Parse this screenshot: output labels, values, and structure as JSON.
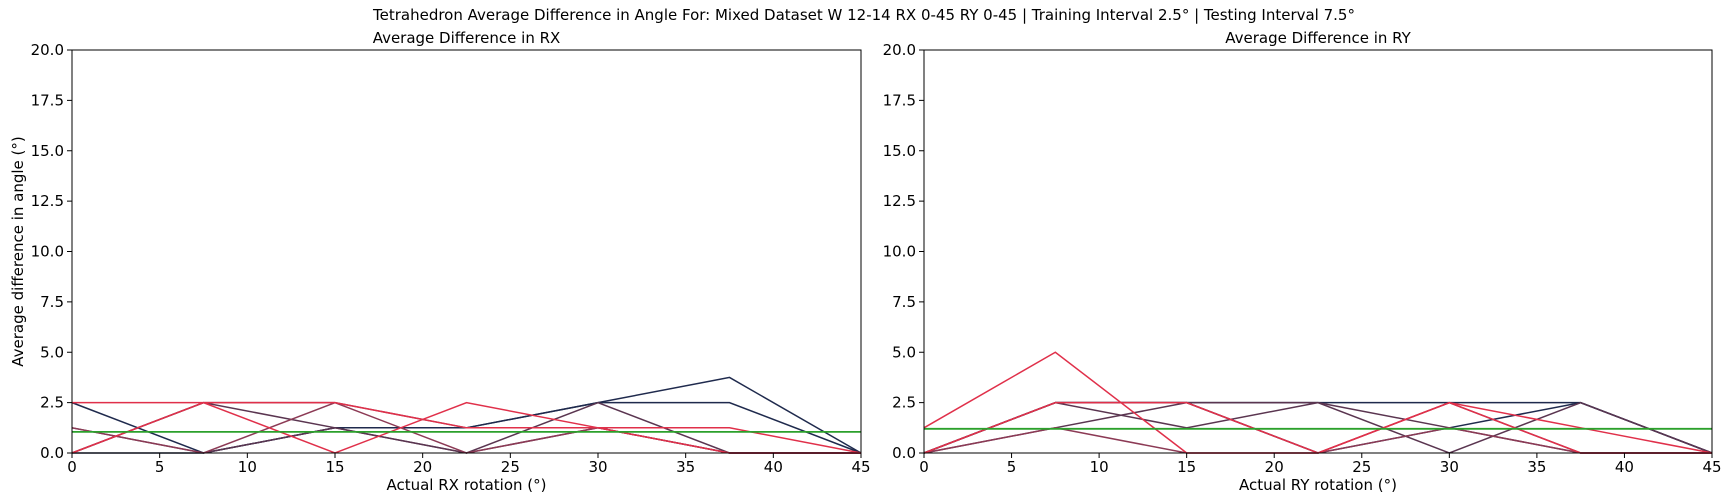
{
  "figure": {
    "title": "Tetrahedron Average Difference in Angle For: Mixed Dataset W 12-14 RX 0-45 RY 0-45 | Training Interval 2.5° | Testing Interval 7.5°"
  },
  "colors": {
    "navy": "#1f2a4d",
    "plum": "#5a3550",
    "rose": "#8c3a55",
    "crimson": "#e0304a",
    "mean_line": "#2ca02c",
    "axis": "#000000"
  },
  "chart_data": [
    {
      "type": "line",
      "title": "Average Difference in RX",
      "xlabel": "Actual RX rotation (°)",
      "ylabel": "Average difference in angle (°)",
      "xlim": [
        0,
        45
      ],
      "ylim": [
        0,
        20
      ],
      "xticks": [
        0,
        5,
        10,
        15,
        20,
        25,
        30,
        35,
        40,
        45
      ],
      "yticks": [
        "0.0",
        "2.5",
        "5.0",
        "7.5",
        "10.0",
        "12.5",
        "15.0",
        "17.5",
        "20.0"
      ],
      "grid": false,
      "x": [
        0,
        7.5,
        15,
        22.5,
        30,
        37.5,
        45
      ],
      "series": [
        {
          "color": "#1f2a4d",
          "values": [
            2.5,
            0,
            1.25,
            1.25,
            2.5,
            3.75,
            0
          ]
        },
        {
          "color": "#1f2a4d",
          "values": [
            0,
            0,
            1.25,
            1.25,
            2.5,
            2.5,
            0
          ]
        },
        {
          "color": "#5a3550",
          "values": [
            1.25,
            0,
            1.25,
            0,
            2.5,
            0,
            0
          ]
        },
        {
          "color": "#5a3550",
          "values": [
            0,
            2.5,
            1.25,
            0,
            1.25,
            0,
            0
          ]
        },
        {
          "color": "#8c3a55",
          "values": [
            0,
            2.5,
            2.5,
            1.25,
            1.25,
            0,
            0
          ]
        },
        {
          "color": "#8c3a55",
          "values": [
            1.25,
            0,
            2.5,
            0,
            1.25,
            0,
            0
          ]
        },
        {
          "color": "#e0304a",
          "values": [
            2.5,
            2.5,
            2.5,
            1.25,
            1.25,
            1.25,
            0
          ]
        },
        {
          "color": "#e0304a",
          "values": [
            0,
            2.5,
            0,
            2.5,
            1.25,
            0,
            0
          ]
        }
      ],
      "mean_line": {
        "color": "#2ca02c",
        "value": 1.05
      }
    },
    {
      "type": "line",
      "title": "Average Difference in RY",
      "xlabel": "Actual RY rotation (°)",
      "ylabel": "",
      "xlim": [
        0,
        45
      ],
      "ylim": [
        0,
        20
      ],
      "xticks": [
        0,
        5,
        10,
        15,
        20,
        25,
        30,
        35,
        40,
        45
      ],
      "yticks": [
        "0.0",
        "2.5",
        "5.0",
        "7.5",
        "10.0",
        "12.5",
        "15.0",
        "17.5",
        "20.0"
      ],
      "grid": false,
      "x": [
        0,
        7.5,
        15,
        22.5,
        30,
        37.5,
        45
      ],
      "series": [
        {
          "color": "#1f2a4d",
          "values": [
            0,
            2.5,
            2.5,
            2.5,
            2.5,
            2.5,
            0
          ]
        },
        {
          "color": "#1f2a4d",
          "values": [
            0,
            2.5,
            2.5,
            0,
            1.25,
            2.5,
            0
          ]
        },
        {
          "color": "#5a3550",
          "values": [
            0,
            2.5,
            1.25,
            2.5,
            0,
            2.5,
            0
          ]
        },
        {
          "color": "#5a3550",
          "values": [
            0,
            1.25,
            2.5,
            2.5,
            1.25,
            0,
            0
          ]
        },
        {
          "color": "#8c3a55",
          "values": [
            0,
            1.25,
            0,
            0,
            2.5,
            0,
            0
          ]
        },
        {
          "color": "#8c3a55",
          "values": [
            0,
            2.5,
            2.5,
            0,
            1.25,
            0,
            0
          ]
        },
        {
          "color": "#e0304a",
          "values": [
            1.25,
            5,
            0,
            0,
            2.5,
            1.25,
            0
          ]
        },
        {
          "color": "#e0304a",
          "values": [
            0,
            2.5,
            2.5,
            0,
            2.5,
            0,
            0
          ]
        }
      ],
      "mean_line": {
        "color": "#2ca02c",
        "value": 1.2
      }
    }
  ]
}
